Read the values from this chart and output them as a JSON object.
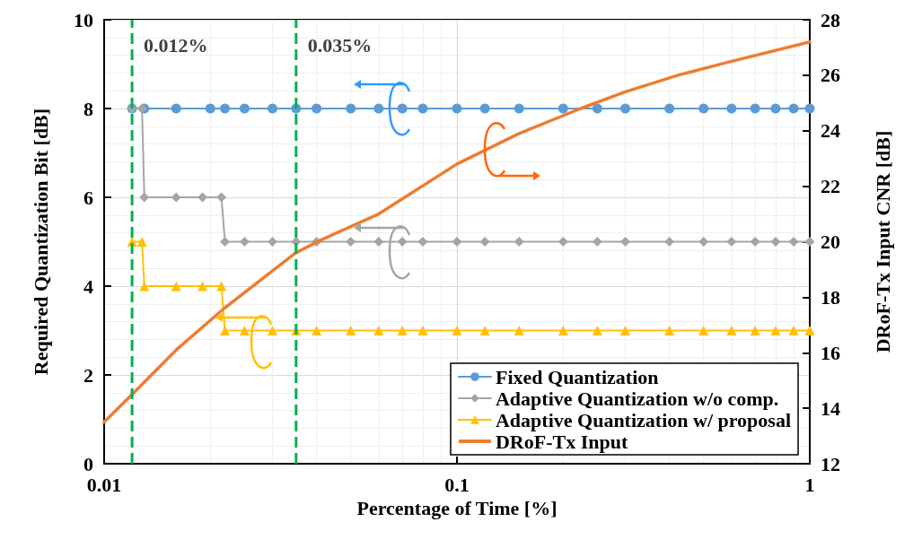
{
  "chart_data": {
    "type": "line",
    "xlabel": "Percentage of Time [%]",
    "ylabel": "Required Quantization Bit [dB]",
    "y2label": "DRoF-Tx Input CNR [dB]",
    "log": "x",
    "grid": true,
    "legend": "bottom right",
    "xlim": [
      0.01,
      1
    ],
    "xticks": [
      0.01,
      0.1,
      1
    ],
    "ylim": [
      0,
      10
    ],
    "yticks": [
      0,
      2,
      4,
      6,
      8,
      10
    ],
    "y2lim": [
      12,
      28
    ],
    "y2ticks": [
      12,
      14,
      16,
      18,
      20,
      22,
      24,
      26,
      28
    ],
    "ref_lines": [
      {
        "axis": "x",
        "value": 0.012,
        "label": "0.012%",
        "color": "#00b050",
        "line_style": "dashed"
      },
      {
        "axis": "x",
        "value": 0.035,
        "label": "0.035%",
        "color": "#00b050",
        "line_style": "dashed"
      }
    ],
    "series": [
      {
        "name": "Fixed Quantization",
        "color": "#5b9bd5",
        "marker": "circle",
        "x": [
          0.012,
          0.013,
          0.016,
          0.02,
          0.022,
          0.025,
          0.03,
          0.035,
          0.04,
          0.05,
          0.06,
          0.07,
          0.08,
          0.1,
          0.12,
          0.15,
          0.2,
          0.25,
          0.3,
          0.4,
          0.5,
          0.6,
          0.7,
          0.8,
          0.9,
          1
        ],
        "values": [
          8,
          8,
          8,
          8,
          8,
          8,
          8,
          8,
          8,
          8,
          8,
          8,
          8,
          8,
          8,
          8,
          8,
          8,
          8,
          8,
          8,
          8,
          8,
          8,
          8,
          8
        ]
      },
      {
        "name": "Adaptive Quantization w/o comp.",
        "color": "#a5a5a5",
        "marker": "diamond",
        "x": [
          0.012,
          0.0128,
          0.013,
          0.016,
          0.019,
          0.0215,
          0.022,
          0.025,
          0.03,
          0.035,
          0.04,
          0.05,
          0.06,
          0.07,
          0.08,
          0.1,
          0.12,
          0.15,
          0.2,
          0.25,
          0.3,
          0.4,
          0.5,
          0.6,
          0.7,
          0.8,
          0.9,
          1
        ],
        "values": [
          8,
          8,
          6,
          6,
          6,
          6,
          5,
          5,
          5,
          5,
          5,
          5,
          5,
          5,
          5,
          5,
          5,
          5,
          5,
          5,
          5,
          5,
          5,
          5,
          5,
          5,
          5,
          5
        ]
      },
      {
        "name": "Adaptive Quantization w/ proposal",
        "color": "#ffc000",
        "marker": "triangle",
        "x": [
          0.012,
          0.0128,
          0.013,
          0.016,
          0.019,
          0.0215,
          0.022,
          0.025,
          0.03,
          0.035,
          0.04,
          0.05,
          0.06,
          0.07,
          0.08,
          0.1,
          0.12,
          0.15,
          0.2,
          0.25,
          0.3,
          0.4,
          0.5,
          0.6,
          0.7,
          0.8,
          0.9,
          1
        ],
        "values": [
          5,
          5,
          4,
          4,
          4,
          4,
          3,
          3,
          3,
          3,
          3,
          3,
          3,
          3,
          3,
          3,
          3,
          3,
          3,
          3,
          3,
          3,
          3,
          3,
          3,
          3,
          3,
          3
        ]
      },
      {
        "name": "DRoF-Tx Input",
        "color": "#ed7d31",
        "marker": "none",
        "axis": "y2",
        "x": [
          0.01,
          0.012,
          0.016,
          0.0219,
          0.0349,
          0.0418,
          0.06,
          0.1,
          0.15,
          0.224,
          0.3,
          0.423,
          0.6,
          1
        ],
        "values": [
          13.5,
          14.5,
          16.1,
          17.6,
          19.6,
          20.1,
          21.0,
          22.8,
          23.9,
          24.8,
          25.4,
          26.0,
          26.5,
          27.2
        ]
      }
    ]
  }
}
